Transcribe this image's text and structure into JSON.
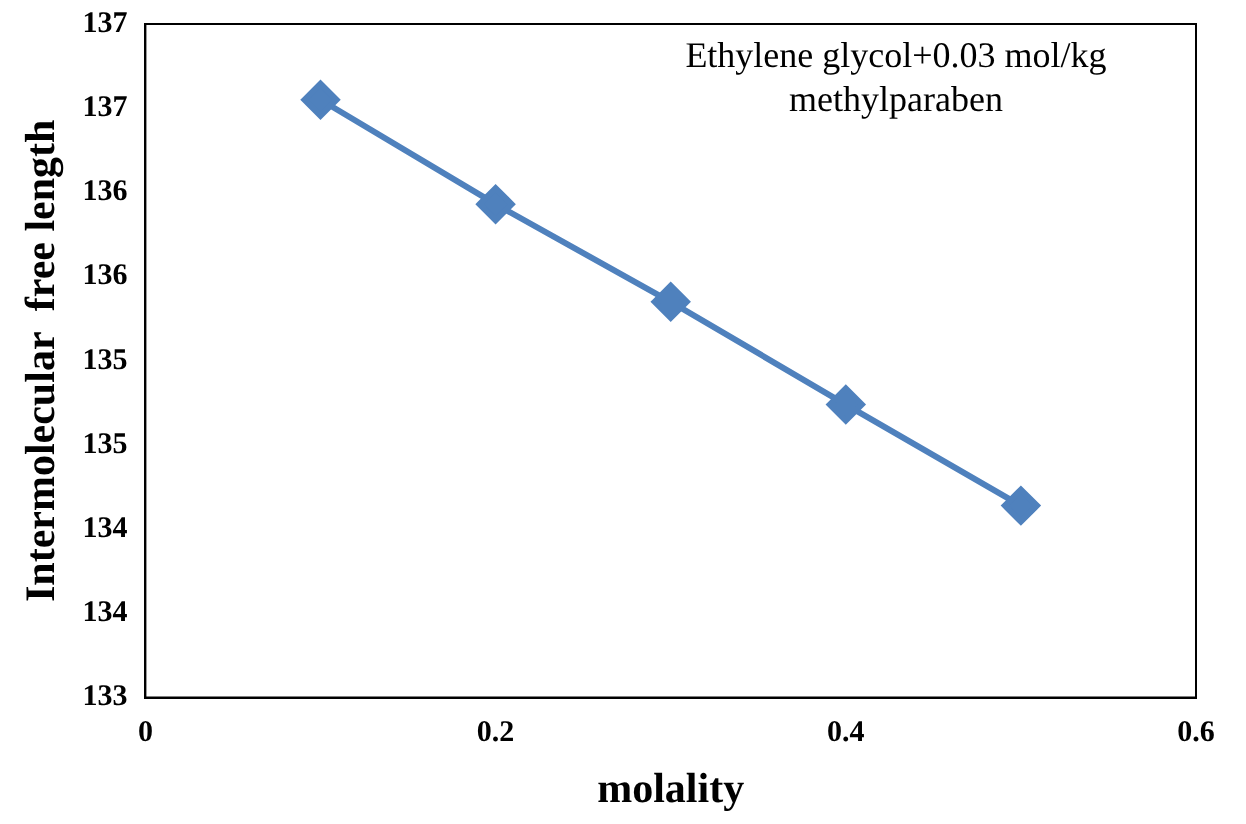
{
  "chart_data": {
    "type": "line",
    "xlabel": "molality",
    "ylabel": "Intermolecular  free length",
    "x": [
      0.1,
      0.2,
      0.3,
      0.4,
      0.5
    ],
    "series": [
      {
        "color": "#4f81bd",
        "values": [
          136.55,
          135.93,
          135.35,
          134.74,
          134.14
        ]
      }
    ],
    "xlim": [
      0,
      0.6
    ],
    "xticks": [
      0,
      0.2,
      0.4,
      0.6
    ],
    "ylim": [
      133,
      137
    ],
    "yticks": [
      133,
      {
        "value": 133.5,
        "label": "134"
      },
      134,
      {
        "value": 134.5,
        "label": "135"
      },
      135,
      {
        "value": 135.5,
        "label": "136"
      },
      136,
      {
        "value": 136.5,
        "label": "137"
      },
      137
    ],
    "annotations": [
      "Ethylene glycol+0.03 mol/kg methylparaben"
    ],
    "grid": false,
    "legend": false,
    "marker": "diamond",
    "line_style": "solid"
  }
}
